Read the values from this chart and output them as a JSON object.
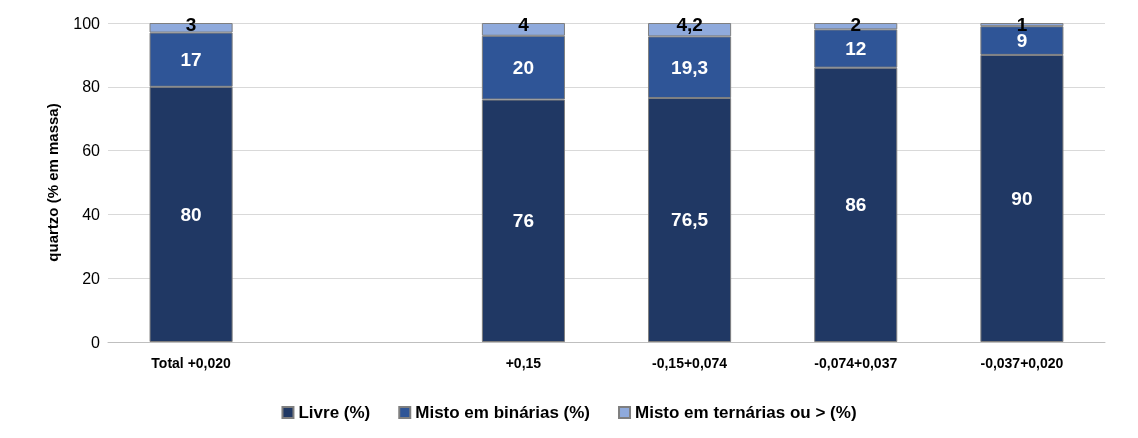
{
  "chart_data": {
    "type": "bar",
    "stacked": true,
    "ylabel": "quartzo (% em massa)",
    "categories": [
      "Total +0,020",
      null,
      "+0,15",
      "-0,15+0,074",
      "-0,074+0,037",
      "-0,037+0,020"
    ],
    "series": [
      {
        "name": "Livre (%)",
        "color": "#203864",
        "values": [
          80,
          null,
          76,
          76.5,
          86,
          90
        ],
        "value_labels": [
          "80",
          null,
          "76",
          "76,5",
          "86",
          "90"
        ]
      },
      {
        "name": "Misto em binárias (%)",
        "color": "#2f5597",
        "values": [
          17,
          null,
          20,
          19.3,
          12,
          9
        ],
        "value_labels": [
          "17",
          null,
          "20",
          "19,3",
          "12",
          "9"
        ]
      },
      {
        "name": "Misto em ternárias ou > (%)",
        "color": "#8faadc",
        "values": [
          3,
          null,
          4,
          4.2,
          2,
          1
        ],
        "value_labels": [
          "3",
          null,
          "4",
          "4,2",
          "2",
          "1"
        ]
      }
    ],
    "ylim": [
      0,
      100
    ],
    "yticks": [
      0,
      20,
      40,
      60,
      80,
      100
    ],
    "grid": "y",
    "legend": "bottom"
  }
}
